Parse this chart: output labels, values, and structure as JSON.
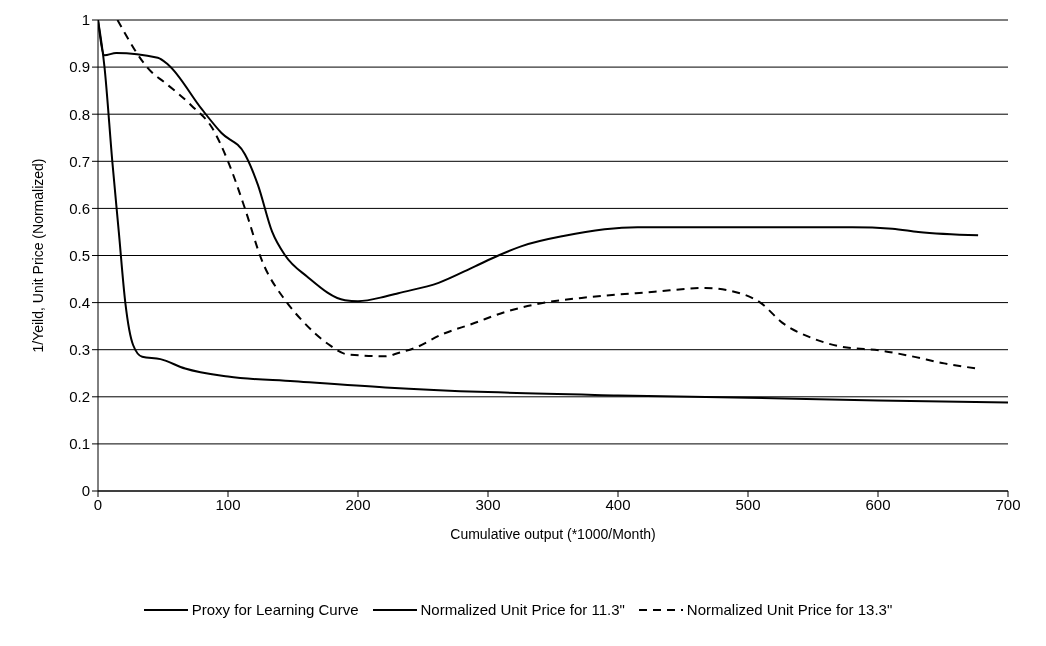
{
  "chart_data": {
    "type": "line",
    "xlabel": "Cumulative output (*1000/Month)",
    "ylabel": "1/Yeild, Unit Price (Normalized)",
    "xlim": [
      0,
      700
    ],
    "xticks": [
      0,
      100,
      200,
      300,
      400,
      500,
      600,
      700
    ],
    "ylim": [
      0,
      1
    ],
    "yticks": [
      0,
      0.1,
      0.2,
      0.3,
      0.4,
      0.5,
      0.6,
      0.7,
      0.8,
      0.9,
      1
    ],
    "grid": "y",
    "legend": "bottom",
    "marker": "none",
    "series": [
      {
        "name": "Proxy for Learning Curve",
        "color": "#000000",
        "line_style": "solid",
        "x": [
          0,
          5,
          11,
          16,
          21,
          27,
          34,
          48,
          67,
          100,
          151,
          221,
          300,
          400,
          500,
          600,
          700
        ],
        "values": [
          1,
          0.9,
          0.7,
          0.55,
          0.4,
          0.31,
          0.285,
          0.28,
          0.26,
          0.243,
          0.233,
          0.22,
          0.21,
          0.203,
          0.198,
          0.192,
          0.188
        ]
      },
      {
        "name": "Normalized Unit Price for 11.3\"",
        "color": "#000000",
        "line_style": "solid",
        "x": [
          0,
          5,
          14,
          46,
          54,
          80,
          95,
          113,
          123,
          134,
          144,
          161,
          190,
          200,
          221,
          231,
          262,
          290,
          308,
          326,
          359,
          415,
          477,
          580,
          611,
          631,
          677
        ],
        "values": [
          1,
          0.925,
          0.93,
          0.92,
          0.905,
          0.81,
          0.76,
          0.715,
          0.65,
          0.55,
          0.5,
          0.455,
          0.405,
          0.403,
          0.413,
          0.42,
          0.442,
          0.477,
          0.5,
          0.52,
          0.542,
          0.56,
          0.56,
          0.56,
          0.557,
          0.55,
          0.543
        ]
      },
      {
        "name": "Normalized Unit Price for 13.3\"",
        "color": "#000000",
        "line_style": "dashed",
        "x": [
          15,
          41,
          51,
          72,
          88,
          100,
          113,
          126,
          144,
          157,
          177,
          192,
          221,
          231,
          244,
          265,
          288,
          313,
          344,
          372,
          428,
          467,
          498,
          510,
          526,
          549,
          569,
          605,
          626,
          651,
          676
        ],
        "values": [
          1,
          0.89,
          0.868,
          0.818,
          0.77,
          0.7,
          0.6,
          0.49,
          0.405,
          0.362,
          0.312,
          0.29,
          0.286,
          0.293,
          0.304,
          0.333,
          0.355,
          0.38,
          0.4,
          0.41,
          0.423,
          0.431,
          0.416,
          0.399,
          0.358,
          0.325,
          0.308,
          0.297,
          0.286,
          0.271,
          0.26
        ]
      }
    ]
  }
}
